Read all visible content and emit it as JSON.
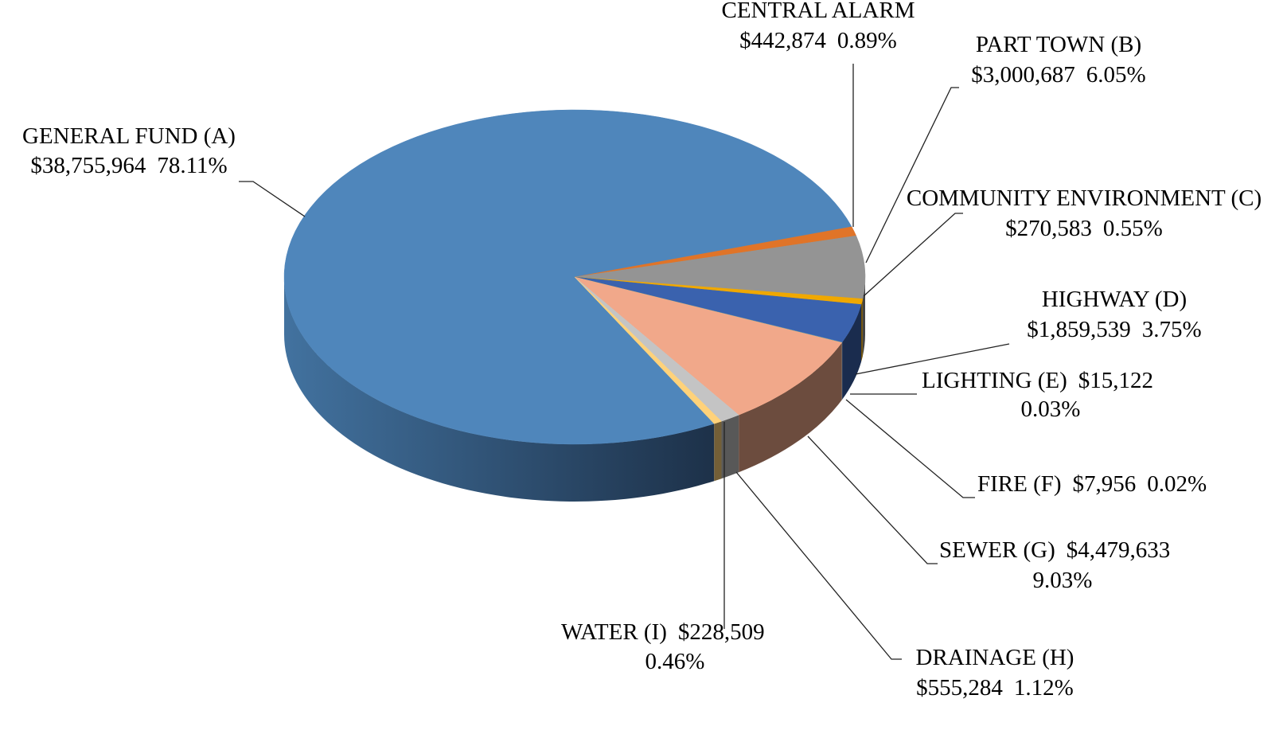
{
  "chart_data": {
    "type": "pie3d",
    "categories": [
      "GENERAL FUND (A)",
      "CENTRAL ALARM",
      "PART TOWN (B)",
      "COMMUNITY ENVIRONMENT (C)",
      "HIGHWAY (D)",
      "LIGHTING (E)",
      "FIRE (F)",
      "SEWER (G)",
      "DRAINAGE (H)",
      "WATER (I)"
    ],
    "values": [
      38755964,
      442874,
      3000687,
      270583,
      1859539,
      15122,
      7956,
      4479633,
      555284,
      228509
    ],
    "value_labels": [
      "$38,755,964",
      "$442,874",
      "$3,000,687",
      "$270,583",
      "$1,859,539",
      "$15,122",
      "$7,956",
      "$4,479,633",
      "$555,284",
      "$228,509"
    ],
    "percents": [
      78.11,
      0.89,
      6.05,
      0.55,
      3.75,
      0.03,
      0.02,
      9.03,
      1.12,
      0.46
    ],
    "percent_labels": [
      "78.11%",
      "0.89%",
      "6.05%",
      "0.55%",
      "3.75%",
      "0.03%",
      "0.02%",
      "9.03%",
      "1.12%",
      "0.46%"
    ],
    "colors": [
      "#4f86bb",
      "#e07428",
      "#949494",
      "#f0a800",
      "#3a62ae",
      "#5b8fd6",
      "#6aa84f",
      "#f1a88a",
      "#c4c4c4",
      "#ffd27a"
    ]
  }
}
